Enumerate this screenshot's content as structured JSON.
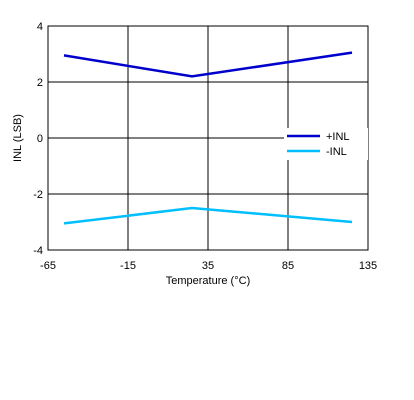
{
  "chart_data": {
    "type": "line",
    "title": "",
    "xlabel": "Temperature (°C)",
    "ylabel": "INL (LSB)",
    "xlim": [
      -65,
      135
    ],
    "ylim": [
      -4,
      4
    ],
    "xticks": [
      -65,
      -15,
      35,
      85,
      135
    ],
    "yticks": [
      4,
      2,
      0,
      -2,
      -4
    ],
    "x_tick_labels": [
      "-65",
      "-15",
      "35",
      "85",
      "135"
    ],
    "y_tick_labels": [
      "4",
      "2",
      "0",
      "-2",
      "-4"
    ],
    "grid": true,
    "legend_position": "right",
    "series": [
      {
        "name": "+INL",
        "color": "#0000CC",
        "x": [
          -55,
          25,
          125
        ],
        "y": [
          2.95,
          2.2,
          3.05
        ]
      },
      {
        "name": "-INL",
        "color": "#00BFFF",
        "x": [
          -55,
          25,
          125
        ],
        "y": [
          -3.05,
          -2.5,
          -3.0
        ]
      }
    ]
  }
}
